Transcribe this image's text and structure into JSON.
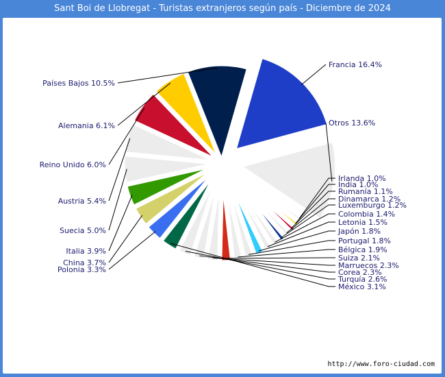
{
  "chart_data": {
    "type": "pie",
    "title": "Sant Boi de Llobregat - Turistas extranjeros según país - Diciembre de 2024",
    "slices": [
      {
        "name": "Francia",
        "value": 16.4,
        "label": "Francia 16.4%",
        "color": "#1e3ec8",
        "exploded": true
      },
      {
        "name": "Otros",
        "value": 13.6,
        "label": "Otros 13.6%",
        "color": "#ececec",
        "exploded": true
      },
      {
        "name": "Irlanda",
        "value": 1.0,
        "label": "Irlanda 1.0%",
        "color": "#ececec"
      },
      {
        "name": "India",
        "value": 1.0,
        "label": "India 1.0%",
        "color": "#ffd700"
      },
      {
        "name": "Rumanía",
        "value": 1.1,
        "label": "Rumanía 1.1%",
        "color": "#c8102e"
      },
      {
        "name": "Dinamarca",
        "value": 1.2,
        "label": "Dinamarca 1.2%",
        "color": "#ececec"
      },
      {
        "name": "Luxemburgo",
        "value": 1.2,
        "label": "Luxemburgo 1.2%",
        "color": "#0a3296"
      },
      {
        "name": "Colombia",
        "value": 1.4,
        "label": "Colombia 1.4%",
        "color": "#ececec"
      },
      {
        "name": "Letonia",
        "value": 1.5,
        "label": "Letonia 1.5%",
        "color": "#ececec"
      },
      {
        "name": "Japón",
        "value": 1.8,
        "label": "Japón 1.8%",
        "color": "#33ccff"
      },
      {
        "name": "Portugal",
        "value": 1.8,
        "label": "Portugal 1.8%",
        "color": "#ececec"
      },
      {
        "name": "Bélgica",
        "value": 1.9,
        "label": "Bélgica 1.9%",
        "color": "#ececec"
      },
      {
        "name": "Suiza",
        "value": 2.1,
        "label": "Suiza 2.1%",
        "color": "#d42a1a"
      },
      {
        "name": "Marruecos",
        "value": 2.3,
        "label": "Marruecos 2.3%",
        "color": "#ececec"
      },
      {
        "name": "Corea",
        "value": 2.3,
        "label": "Corea 2.3%",
        "color": "#ececec"
      },
      {
        "name": "Turquía",
        "value": 2.6,
        "label": "Turquía 2.6%",
        "color": "#ececec"
      },
      {
        "name": "México",
        "value": 3.1,
        "label": "México 3.1%",
        "color": "#006847"
      },
      {
        "name": "Polonia",
        "value": 3.3,
        "label": "Polonia 3.3%",
        "color": "#3a6ef0"
      },
      {
        "name": "China",
        "value": 3.7,
        "label": "China 3.7%",
        "color": "#d4d06a"
      },
      {
        "name": "Italia",
        "value": 3.9,
        "label": "Italia 3.9%",
        "color": "#339900"
      },
      {
        "name": "Suecia",
        "value": 5.0,
        "label": "Suecia 5.0%",
        "color": "#ececec"
      },
      {
        "name": "Austria",
        "value": 5.4,
        "label": "Austria 5.4%",
        "color": "#ececec"
      },
      {
        "name": "Reino Unido",
        "value": 6.0,
        "label": "Reino Unido 6.0%",
        "color": "#c8102e"
      },
      {
        "name": "Alemania",
        "value": 6.1,
        "label": "Alemania 6.1%",
        "color": "#ffcc00"
      },
      {
        "name": "Países Bajos",
        "value": 10.5,
        "label": "Países Bajos 10.5%",
        "color": "#001f4d"
      }
    ]
  },
  "footer": {
    "source": "http://www.foro-ciudad.com"
  }
}
